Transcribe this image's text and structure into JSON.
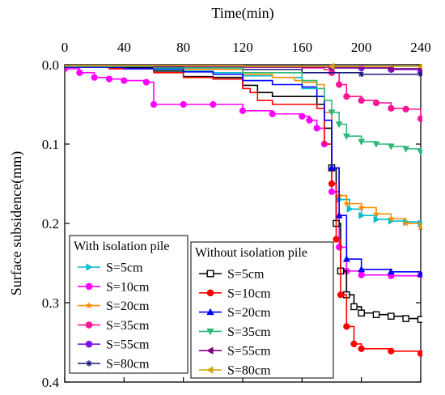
{
  "chart_data": {
    "type": "line",
    "xlabel": "Time(min)",
    "ylabel": "Surface subsidence(mm)",
    "xlim": [
      0,
      240
    ],
    "ylim": [
      0.0,
      0.4
    ],
    "y_inverted": true,
    "x_axis_position": "top",
    "grid": false,
    "xticks": [
      "0",
      "40",
      "80",
      "120",
      "160",
      "200",
      "240"
    ],
    "yticks": [
      "0.0",
      "0.1",
      "0.2",
      "0.3",
      "0.4"
    ],
    "legend_placement": "bottom-left",
    "legend_groups": [
      {
        "title": "With isolation pile",
        "series": [
          0,
          1,
          2,
          3,
          4,
          5
        ]
      },
      {
        "title": "Without isolation pile",
        "series": [
          6,
          7,
          8,
          9,
          10,
          11
        ]
      }
    ],
    "series": [
      {
        "name": "S=5cm",
        "color": "#00bcd4",
        "marker": "tri-right",
        "points": [
          [
            0,
            0.002
          ],
          [
            20,
            0.003
          ],
          [
            40,
            0.004
          ],
          [
            60,
            0.006
          ],
          [
            80,
            0.008
          ],
          [
            100,
            0.01
          ],
          [
            120,
            0.014
          ],
          [
            140,
            0.016
          ],
          [
            160,
            0.03
          ],
          [
            170,
            0.04
          ],
          [
            175,
            0.06
          ],
          [
            180,
            0.13
          ],
          [
            185,
            0.17
          ],
          [
            192,
            0.182
          ],
          [
            200,
            0.19
          ],
          [
            210,
            0.195
          ],
          [
            220,
            0.197
          ],
          [
            230,
            0.198
          ],
          [
            240,
            0.2
          ]
        ]
      },
      {
        "name": "S=10cm",
        "color": "#ff00ff",
        "marker": "circle",
        "points": [
          [
            0,
            0.005
          ],
          [
            10,
            0.01
          ],
          [
            20,
            0.016
          ],
          [
            30,
            0.018
          ],
          [
            40,
            0.02
          ],
          [
            55,
            0.022
          ],
          [
            60,
            0.05
          ],
          [
            80,
            0.05
          ],
          [
            100,
            0.05
          ],
          [
            120,
            0.058
          ],
          [
            140,
            0.062
          ],
          [
            160,
            0.065
          ],
          [
            165,
            0.07
          ],
          [
            170,
            0.08
          ],
          [
            175,
            0.1
          ],
          [
            180,
            0.16
          ],
          [
            185,
            0.23
          ],
          [
            190,
            0.26
          ],
          [
            200,
            0.265
          ],
          [
            220,
            0.266
          ],
          [
            240,
            0.265
          ]
        ]
      },
      {
        "name": "S=20cm",
        "color": "#ff8c00",
        "marker": "star",
        "points": [
          [
            0,
            0.002
          ],
          [
            40,
            0.003
          ],
          [
            80,
            0.006
          ],
          [
            120,
            0.012
          ],
          [
            140,
            0.016
          ],
          [
            155,
            0.02
          ],
          [
            160,
            0.022
          ],
          [
            170,
            0.025
          ],
          [
            175,
            0.06
          ],
          [
            180,
            0.13
          ],
          [
            185,
            0.165
          ],
          [
            190,
            0.175
          ],
          [
            200,
            0.18
          ],
          [
            210,
            0.188
          ],
          [
            220,
            0.194
          ],
          [
            230,
            0.2
          ],
          [
            240,
            0.205
          ]
        ]
      },
      {
        "name": "S=35cm",
        "color": "#ff1493",
        "marker": "circle",
        "points": [
          [
            0,
            0.001
          ],
          [
            60,
            0.002
          ],
          [
            120,
            0.003
          ],
          [
            160,
            0.004
          ],
          [
            175,
            0.006
          ],
          [
            180,
            0.01
          ],
          [
            185,
            0.025
          ],
          [
            190,
            0.04
          ],
          [
            200,
            0.045
          ],
          [
            210,
            0.048
          ],
          [
            220,
            0.055
          ],
          [
            230,
            0.056
          ],
          [
            240,
            0.068
          ]
        ]
      },
      {
        "name": "S=55cm",
        "color": "#7b16e8",
        "marker": "circle",
        "points": [
          [
            0,
            0.001
          ],
          [
            60,
            0.001
          ],
          [
            120,
            0.002
          ],
          [
            180,
            0.003
          ],
          [
            200,
            0.004
          ],
          [
            220,
            0.006
          ],
          [
            240,
            0.009
          ]
        ]
      },
      {
        "name": "S=80cm",
        "color": "#1a1a7a",
        "marker": "asterisk",
        "points": [
          [
            0,
            0.002
          ],
          [
            40,
            0.003
          ],
          [
            80,
            0.004
          ],
          [
            120,
            0.006
          ],
          [
            160,
            0.01
          ],
          [
            200,
            0.012
          ],
          [
            240,
            0.012
          ]
        ]
      },
      {
        "name": "S=5cm",
        "color": "#000000",
        "marker": "square-open",
        "points": [
          [
            0,
            0.003
          ],
          [
            30,
            0.004
          ],
          [
            60,
            0.008
          ],
          [
            80,
            0.015
          ],
          [
            100,
            0.016
          ],
          [
            120,
            0.026
          ],
          [
            130,
            0.035
          ],
          [
            140,
            0.04
          ],
          [
            160,
            0.04
          ],
          [
            170,
            0.05
          ],
          [
            175,
            0.08
          ],
          [
            180,
            0.13
          ],
          [
            183,
            0.2
          ],
          [
            186,
            0.26
          ],
          [
            190,
            0.29
          ],
          [
            195,
            0.305
          ],
          [
            200,
            0.313
          ],
          [
            210,
            0.315
          ],
          [
            220,
            0.317
          ],
          [
            230,
            0.32
          ],
          [
            240,
            0.321
          ]
        ]
      },
      {
        "name": "S=10cm",
        "color": "#ff0000",
        "marker": "circle",
        "points": [
          [
            0,
            0.003
          ],
          [
            30,
            0.005
          ],
          [
            60,
            0.01
          ],
          [
            80,
            0.016
          ],
          [
            100,
            0.018
          ],
          [
            120,
            0.03
          ],
          [
            125,
            0.035
          ],
          [
            130,
            0.045
          ],
          [
            140,
            0.05
          ],
          [
            160,
            0.05
          ],
          [
            170,
            0.055
          ],
          [
            175,
            0.1
          ],
          [
            180,
            0.15
          ],
          [
            183,
            0.22
          ],
          [
            186,
            0.29
          ],
          [
            190,
            0.33
          ],
          [
            195,
            0.352
          ],
          [
            200,
            0.358
          ],
          [
            220,
            0.361
          ],
          [
            240,
            0.364
          ]
        ]
      },
      {
        "name": "S=20cm",
        "color": "#0000ff",
        "marker": "tri-up",
        "points": [
          [
            0,
            0.003
          ],
          [
            40,
            0.005
          ],
          [
            80,
            0.009
          ],
          [
            100,
            0.012
          ],
          [
            120,
            0.02
          ],
          [
            140,
            0.025
          ],
          [
            160,
            0.028
          ],
          [
            170,
            0.04
          ],
          [
            175,
            0.07
          ],
          [
            180,
            0.13
          ],
          [
            185,
            0.19
          ],
          [
            190,
            0.245
          ],
          [
            200,
            0.258
          ],
          [
            220,
            0.261
          ],
          [
            240,
            0.264
          ]
        ]
      },
      {
        "name": "S=35cm",
        "color": "#2eb87a",
        "marker": "tri-down",
        "points": [
          [
            0,
            0.002
          ],
          [
            60,
            0.004
          ],
          [
            120,
            0.01
          ],
          [
            160,
            0.02
          ],
          [
            170,
            0.03
          ],
          [
            175,
            0.045
          ],
          [
            180,
            0.06
          ],
          [
            185,
            0.075
          ],
          [
            190,
            0.09
          ],
          [
            200,
            0.097
          ],
          [
            210,
            0.1
          ],
          [
            220,
            0.103
          ],
          [
            230,
            0.106
          ],
          [
            240,
            0.11
          ]
        ]
      },
      {
        "name": "S=55cm",
        "color": "#800080",
        "marker": "tri-left",
        "points": [
          [
            0,
            0.001
          ],
          [
            60,
            0.002
          ],
          [
            120,
            0.003
          ],
          [
            180,
            0.004
          ],
          [
            220,
            0.005
          ],
          [
            240,
            0.005
          ]
        ]
      },
      {
        "name": "S=80cm",
        "color": "#d4a20f",
        "marker": "tri-left",
        "points": [
          [
            0,
            0.001
          ],
          [
            60,
            0.001
          ],
          [
            120,
            0.002
          ],
          [
            180,
            0.002
          ],
          [
            240,
            0.002
          ]
        ]
      }
    ]
  }
}
